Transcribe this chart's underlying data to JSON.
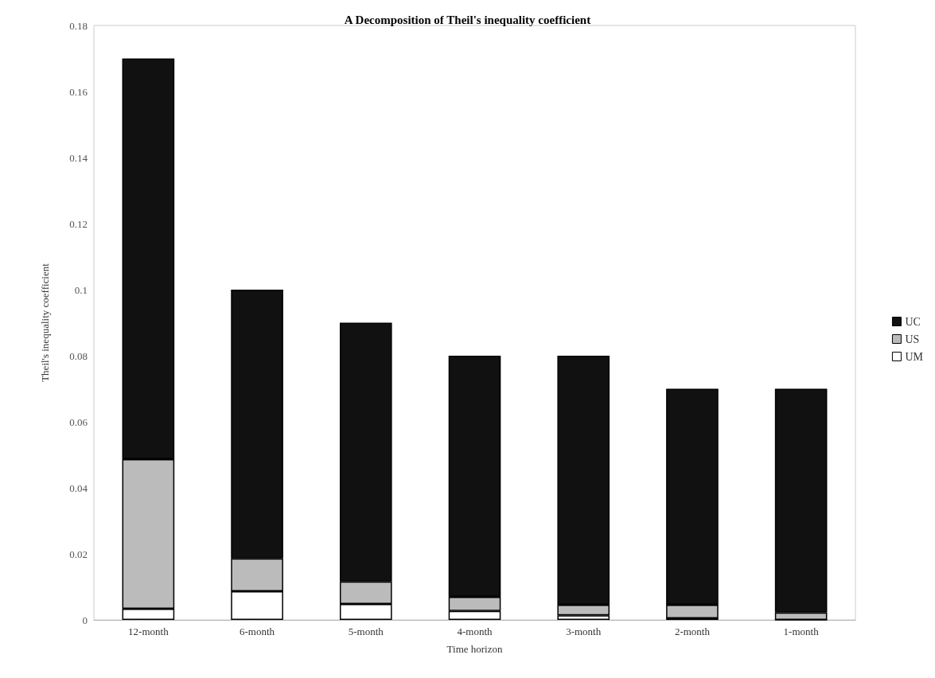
{
  "chart_data": {
    "type": "bar",
    "title": "A Decomposition of Theil's inequality coefficient",
    "xlabel": "Time horizon",
    "ylabel": "Theil's inequality coefficient",
    "categories": [
      "12-month",
      "6-month",
      "5-month",
      "4-month",
      "3-month",
      "2-month",
      "1-month"
    ],
    "stacked": true,
    "series": [
      {
        "name": "UM",
        "color": "#ffffff",
        "values": [
          0.0034,
          0.0087,
          0.0048,
          0.0027,
          0.0014,
          0.0005,
          0
        ]
      },
      {
        "name": "US",
        "color": "#bbbbbb",
        "values": [
          0.0453,
          0.0099,
          0.0068,
          0.0043,
          0.0032,
          0.0041,
          0.0022
        ]
      },
      {
        "name": "UC",
        "color": "#111111",
        "values": [
          0.1213,
          0.0814,
          0.0784,
          0.073,
          0.0754,
          0.0654,
          0.0678
        ]
      }
    ],
    "ylim": [
      0,
      0.18
    ],
    "yticks": [
      0,
      0.02,
      0.04,
      0.06,
      0.08,
      0.1,
      0.12,
      0.14,
      0.16,
      0.18
    ],
    "grid": false,
    "legend": "right"
  }
}
